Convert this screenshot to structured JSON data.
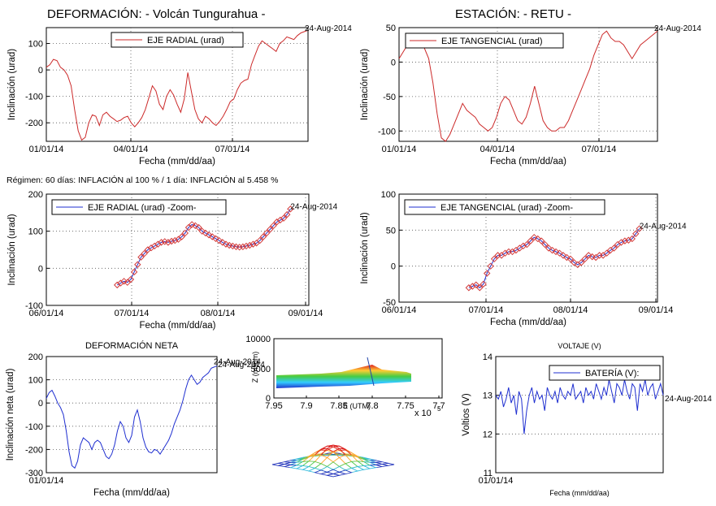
{
  "header": {
    "left_title": "DEFORMACIÓN: - Volcán Tungurahua -",
    "right_title": "ESTACIÓN: - RETU -",
    "regime_text": "Régimen: 60 días: INFLACIÓN al 100 % / 1 día: INFLACIÓN al 5.458 %"
  },
  "colors": {
    "red_series": "#cc2a2a",
    "blue_series": "#1f2fd0",
    "marker": "#d23b3b",
    "grid": "#555555"
  },
  "chart_data": [
    {
      "id": "radial",
      "type": "line",
      "legend": "EJE RADIAL (urad)",
      "xlabel": "Fecha (mm/dd/aa)",
      "ylabel": "Inclinación (urad)",
      "xticks": [
        "01/01/14",
        "04/01/14",
        "07/01/14"
      ],
      "ylim": [
        -270,
        160
      ],
      "yticks": [
        100,
        0,
        -100,
        -200
      ],
      "end_label": "24-Aug-2014",
      "series": [
        {
          "values": [
            10,
            20,
            40,
            35,
            10,
            0,
            -20,
            -60,
            -150,
            -230,
            -265,
            -255,
            -200,
            -170,
            -175,
            -210,
            -170,
            -160,
            -175,
            -185,
            -195,
            -190,
            -180,
            -175,
            -200,
            -215,
            -200,
            -180,
            -150,
            -105,
            -60,
            -80,
            -130,
            -150,
            -100,
            -75,
            -95,
            -130,
            -160,
            -110,
            -10,
            -80,
            -150,
            -185,
            -200,
            -175,
            -185,
            -200,
            -210,
            -195,
            -175,
            -150,
            -120,
            -110,
            -75,
            -50,
            -40,
            -35,
            20,
            55,
            90,
            110,
            100,
            90,
            80,
            70,
            100,
            110,
            125,
            120,
            115,
            130,
            140,
            145,
            150
          ]
        }
      ]
    },
    {
      "id": "tangencial",
      "type": "line",
      "legend": "EJE TANGENCIAL (urad)",
      "xlabel": "Fecha (mm/dd/aa)",
      "ylabel": "Inclinación (urad)",
      "xticks": [
        "01/01/14",
        "04/01/14",
        "07/01/14"
      ],
      "ylim": [
        -115,
        50
      ],
      "yticks": [
        50,
        0,
        -50,
        -100
      ],
      "end_label": "24-Aug-2014",
      "series": [
        {
          "values": [
            5,
            15,
            25,
            30,
            35,
            30,
            20,
            5,
            -30,
            -75,
            -110,
            -115,
            -105,
            -90,
            -75,
            -60,
            -70,
            -75,
            -80,
            -90,
            -95,
            -100,
            -95,
            -80,
            -60,
            -50,
            -55,
            -70,
            -85,
            -90,
            -80,
            -60,
            -35,
            -60,
            -85,
            -95,
            -100,
            -100,
            -95,
            -95,
            -85,
            -70,
            -55,
            -40,
            -25,
            -10,
            10,
            25,
            40,
            45,
            35,
            30,
            30,
            25,
            15,
            5,
            15,
            25,
            30,
            35,
            40,
            45
          ]
        }
      ]
    },
    {
      "id": "radial_zoom",
      "type": "line",
      "legend": "EJE RADIAL (urad) -Zoom-",
      "xlabel": "Fecha (mm/dd/aa)",
      "ylabel": "Inclinación (urad)",
      "xticks": [
        "06/01/14",
        "07/01/14",
        "08/01/14",
        "09/01/14"
      ],
      "ylim": [
        -100,
        200
      ],
      "yticks": [
        200,
        100,
        0,
        -100
      ],
      "end_label": "24-Aug-2014",
      "series": [
        {
          "values": [
            -45,
            -40,
            -35,
            -38,
            -30,
            -10,
            10,
            30,
            40,
            50,
            55,
            60,
            65,
            70,
            72,
            70,
            73,
            75,
            78,
            85,
            95,
            110,
            118,
            115,
            110,
            100,
            95,
            90,
            85,
            80,
            75,
            70,
            65,
            62,
            60,
            58,
            57,
            58,
            60,
            62,
            65,
            68,
            75,
            85,
            95,
            105,
            115,
            125,
            130,
            135,
            145,
            160
          ]
        }
      ]
    },
    {
      "id": "tangencial_zoom",
      "type": "line",
      "legend": "EJE TANGENCIAL (urad) -Zoom-",
      "xlabel": "Fecha (mm/dd/aa)",
      "ylabel": "Inclinación (urad)",
      "xticks": [
        "06/01/14",
        "07/01/14",
        "08/01/14",
        "09/01/14"
      ],
      "ylim": [
        -50,
        100
      ],
      "yticks": [
        100,
        50,
        0,
        -50
      ],
      "end_label": "24-Aug-2014",
      "series": [
        {
          "values": [
            -30,
            -28,
            -26,
            -30,
            -25,
            -10,
            0,
            10,
            15,
            15,
            18,
            20,
            20,
            22,
            25,
            28,
            30,
            35,
            40,
            38,
            35,
            30,
            25,
            22,
            20,
            18,
            15,
            12,
            10,
            5,
            2,
            5,
            10,
            15,
            13,
            12,
            15,
            15,
            18,
            22,
            25,
            30,
            33,
            35,
            36,
            38,
            45,
            52
          ]
        }
      ]
    },
    {
      "id": "neta",
      "type": "line",
      "title": "DEFORMACIÓN NETA",
      "xlabel": "Fecha (mm/dd/aa)",
      "ylabel": "Inclinación neta (urad)",
      "xticks": [
        "01/01/14"
      ],
      "ylim": [
        -300,
        200
      ],
      "yticks": [
        200,
        100,
        0,
        -100,
        -200,
        -300
      ],
      "end_label": "24-Aug-2014",
      "series": [
        {
          "values": [
            20,
            45,
            55,
            30,
            0,
            -20,
            -50,
            -120,
            -210,
            -270,
            -280,
            -250,
            -180,
            -150,
            -160,
            -170,
            -200,
            -170,
            -160,
            -170,
            -200,
            -230,
            -240,
            -220,
            -180,
            -120,
            -80,
            -100,
            -150,
            -170,
            -140,
            -60,
            -30,
            -80,
            -150,
            -190,
            -210,
            -215,
            -200,
            -205,
            -220,
            -200,
            -180,
            -160,
            -130,
            -90,
            -60,
            -30,
            10,
            60,
            100,
            120,
            100,
            80,
            90,
            110,
            120,
            130,
            150,
            155,
            160
          ]
        }
      ]
    },
    {
      "id": "voltaje",
      "type": "line",
      "title": "VOLTAJE (V)",
      "legend": "BATERÍA (V):",
      "xlabel": "Fecha (mm/dd/aa)",
      "ylabel": "Voltios (V)",
      "xticks": [
        "01/01/14"
      ],
      "ylim": [
        11,
        14
      ],
      "yticks": [
        14,
        13,
        12,
        11
      ],
      "end_label": "24-Aug-2014",
      "series": [
        {
          "values": [
            13.0,
            12.9,
            13.1,
            12.7,
            12.9,
            13.2,
            12.8,
            13.0,
            12.5,
            13.1,
            12.9,
            12.0,
            12.6,
            13.0,
            13.2,
            12.8,
            13.1,
            12.9,
            13.0,
            12.6,
            13.2,
            13.0,
            12.9,
            13.1,
            12.8,
            13.2,
            13.0,
            12.9,
            13.1,
            13.0,
            13.3,
            12.9,
            13.0,
            13.1,
            12.8,
            13.2,
            13.0,
            13.1,
            12.9,
            13.3,
            13.1,
            12.9,
            13.2,
            13.0,
            13.4,
            13.1,
            12.8,
            13.3,
            13.2,
            13.0,
            13.4,
            13.1,
            12.9,
            13.3,
            13.2,
            12.6,
            13.3,
            13.1,
            13.4,
            13.0,
            13.2,
            13.3,
            12.9,
            13.1,
            13.3,
            13.0
          ]
        }
      ]
    },
    {
      "id": "utm",
      "type": "heatmap",
      "xlabel": "E (UTM)",
      "ylabel": "Z (msnm)",
      "xticks": [
        "7.95",
        "7.9",
        "7.85",
        "7.8",
        "7.75",
        "7.7"
      ],
      "x_exponent": "x 10",
      "x_exponent_power": "5",
      "yticks": [
        "10000",
        "5000",
        "0"
      ],
      "overlay_label": "24-Aug-2014"
    }
  ]
}
